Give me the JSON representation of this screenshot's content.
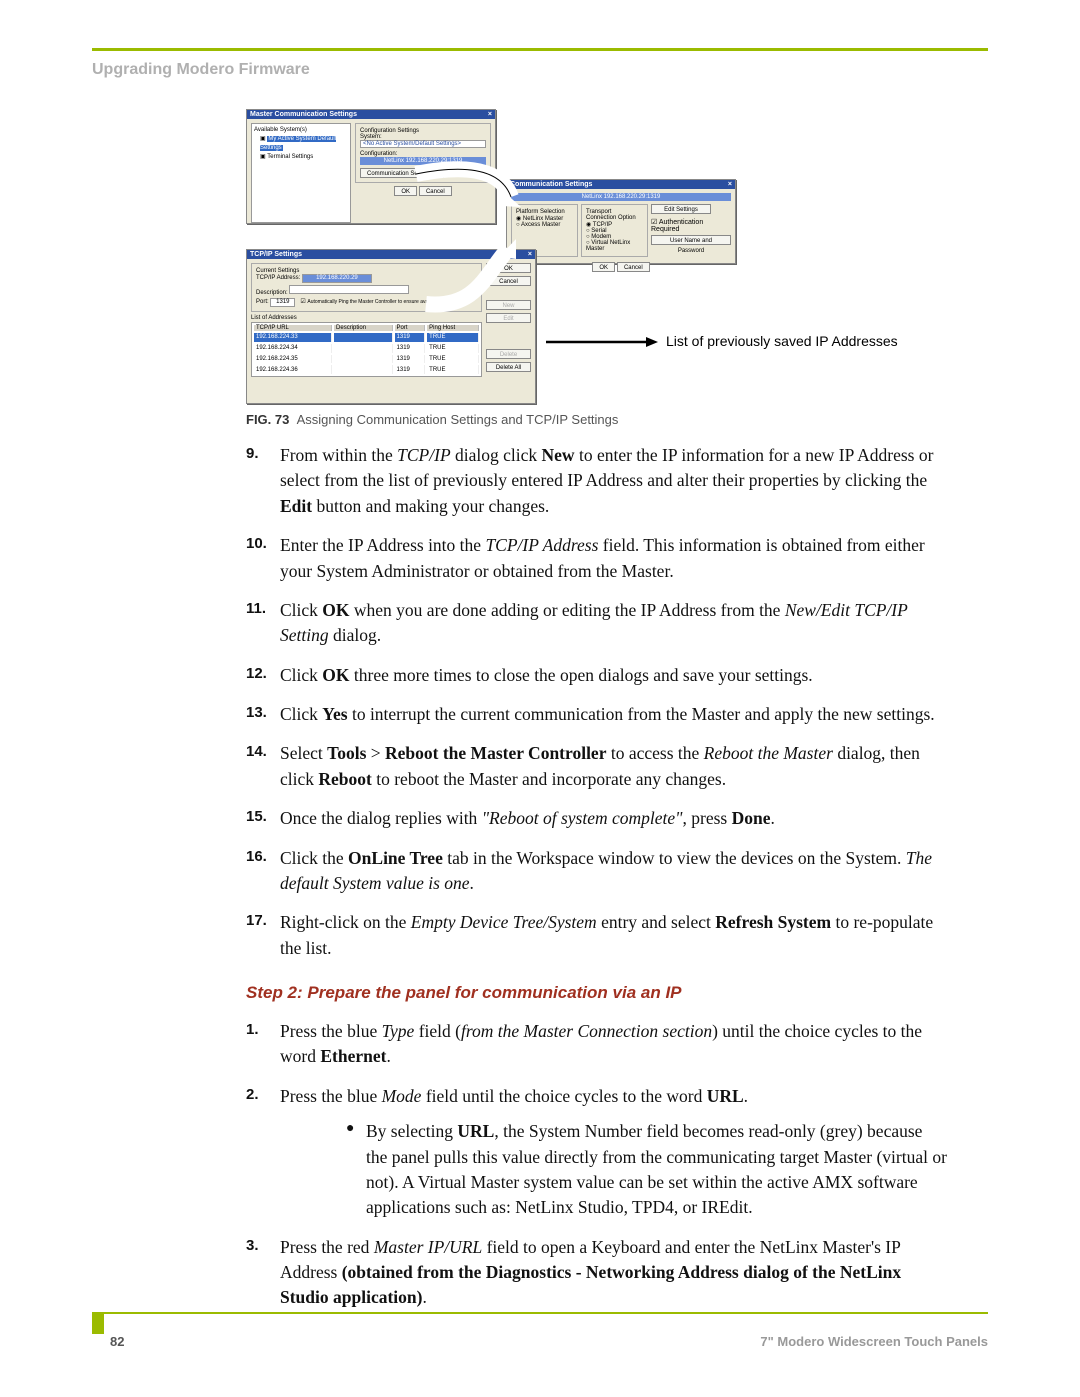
{
  "header": {
    "title": "Upgrading Modero Firmware"
  },
  "figure": {
    "caption_label": "FIG. 73",
    "caption_text": "Assigning Communication Settings and TCP/IP Settings",
    "callout": "List of previously saved IP Addresses",
    "dlg_master": {
      "title": "Master Communication Settings",
      "tree_root": "Available System(s)",
      "tree_sel": "My Active System Default Settings",
      "tree_item2": "Terminal Settings",
      "grp_conf": "Configuration Settings",
      "lbl_system": "System:",
      "val_system": "<No Active System/Default Settings>",
      "lbl_cfg": "Configuration:",
      "val_cfg": "NetLinx 192.168.220.29:1319",
      "btn_comm": "Communication Settings...",
      "btn_ok": "OK",
      "btn_cancel": "Cancel"
    },
    "dlg_comm": {
      "title": "Communication Settings",
      "bar": "NetLinx 192.168.220.29:1319",
      "grp1": "Platform Selection",
      "r1": "NetLinx Master",
      "r2": "Axcess Master",
      "grp2": "Transport Connection Option",
      "o1": "TCP/IP",
      "o2": "Serial",
      "o3": "Modem",
      "o4": "Virtual NetLinx Master",
      "btn_edit": "Edit Settings",
      "chk_auth": "Authentication Required",
      "btn_user": "User Name and Password",
      "btn_ok": "OK",
      "btn_cancel": "Cancel"
    },
    "dlg_tcpip": {
      "title": "TCP/IP Settings",
      "grp_current": "Current Settings",
      "lbl_addr": "TCP/IP Address:",
      "val_addr": "192.168.220.29",
      "lbl_desc": "Description:",
      "lbl_port": "Port:",
      "val_port": "1319",
      "chk_ping": "Automatically Ping the Master Controller to ensure availability.",
      "grp_list": "List of Addresses",
      "th1": "TCP/IP URL",
      "th2": "Description",
      "th3": "Port",
      "th4": "Ping Host",
      "rows": [
        [
          "192.168.224.33",
          "",
          "1319",
          "TRUE"
        ],
        [
          "192.168.224.34",
          "",
          "1319",
          "TRUE"
        ],
        [
          "192.168.224.35",
          "",
          "1319",
          "TRUE"
        ],
        [
          "192.168.224.36",
          "",
          "1319",
          "TRUE"
        ]
      ],
      "btn_ok": "OK",
      "btn_cancel": "Cancel",
      "btn_new": "New",
      "btn_edit": "Edit",
      "btn_delete": "Delete",
      "btn_deleteall": "Delete All"
    }
  },
  "steps_a": [
    {
      "n": "9.",
      "html": "From within the <i>TCP/IP</i> dialog click <b>New</b> to enter the IP information for a new IP Address or select from the list of previously entered IP Address and alter their properties by clicking the <b>Edit</b> button and making your changes."
    },
    {
      "n": "10.",
      "html": "Enter the IP Address into the <i>TCP/IP Address</i> field. This information is obtained from either your System Administrator or obtained from the Master."
    },
    {
      "n": "11.",
      "html": "Click <b>OK</b> when you are done adding or editing the IP Address from the <i>New/Edit TCP/IP Setting</i> dialog."
    },
    {
      "n": "12.",
      "html": "Click <b>OK</b> three more times to close the open dialogs and save your settings."
    },
    {
      "n": "13.",
      "html": "Click <b>Yes</b> to interrupt the current communication from the Master and apply the new settings."
    },
    {
      "n": "14.",
      "html": "Select <b>Tools</b> > <b>Reboot the Master Controller</b> to access the <i>Reboot the Master</i> dialog, then click <b>Reboot</b> to reboot the Master and incorporate any changes."
    },
    {
      "n": "15.",
      "html": "Once the dialog replies with <i>\"Reboot of system complete\"</i>, press <b>Done</b>."
    },
    {
      "n": "16.",
      "html": "Click the <b>OnLine Tree</b> tab in the Workspace window to view the devices on the System. <i>The default System value is one</i>."
    },
    {
      "n": "17.",
      "html": "Right-click on the <i>Empty Device Tree/System</i> entry and select <b>Refresh System</b> to re-populate the list."
    }
  ],
  "step2_heading": "Step 2: Prepare the panel for communication via an IP",
  "steps_b": [
    {
      "n": "1.",
      "html": "Press the blue <i>Type</i> field (<i>from the Master Connection section</i>) until the choice cycles to the word <b>Ethernet</b>."
    },
    {
      "n": "2.",
      "html": "Press the blue <i>Mode</i> field until the choice cycles to the word <b>URL</b>.",
      "sub": "By selecting <b>URL</b>, the System Number field becomes read-only (grey) because the panel pulls this value directly from the communicating target Master (virtual or not). A Virtual Master system value can be set within the active AMX software applications such as: NetLinx Studio, TPD4, or IREdit."
    },
    {
      "n": "3.",
      "html": "Press the red <i>Master IP/URL</i> field to open a Keyboard and enter the NetLinx Master's IP Address <b>(obtained from the Diagnostics - Networking Address dialog of the NetLinx Studio application)</b>."
    }
  ],
  "footer": {
    "page": "82",
    "product": "7\" Modero Widescreen Touch Panels"
  },
  "colors": {
    "accent": "#9bbb00",
    "heading": "#a03020"
  }
}
